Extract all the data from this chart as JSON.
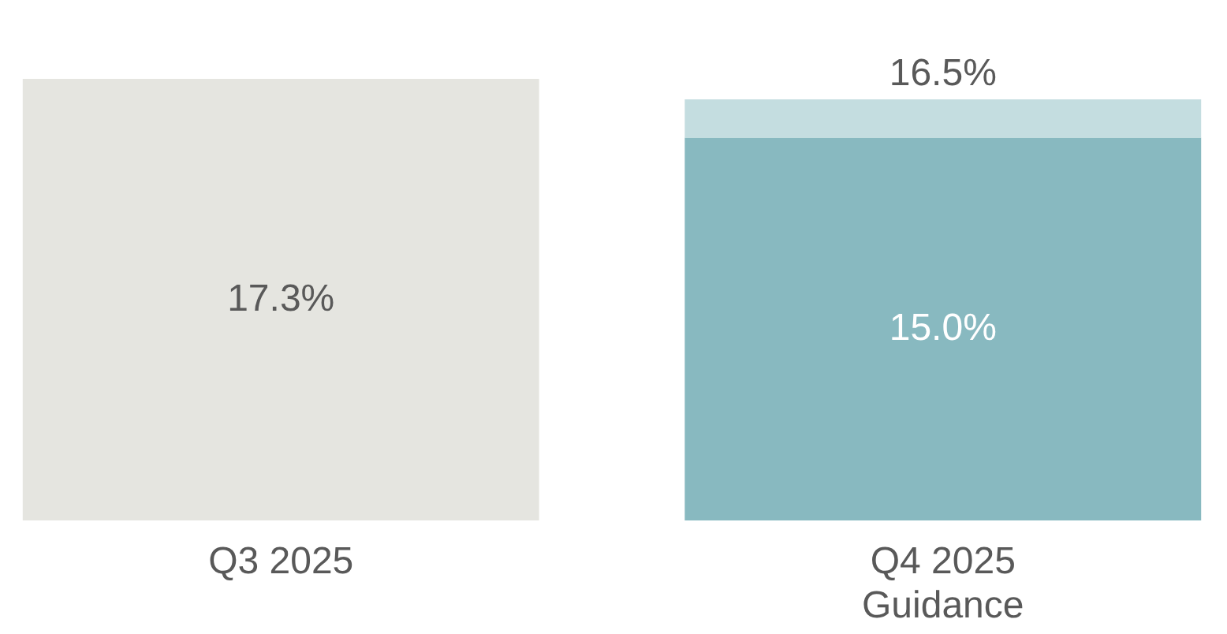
{
  "chart_data": {
    "type": "bar",
    "stacked": true,
    "categories": [
      "Q3 2025",
      "Q4 2025\nGuidance"
    ],
    "series": [
      {
        "colors": [
          "#e5e5e0",
          "#88b9c0"
        ],
        "values": [
          17.3,
          15.0
        ],
        "value_labels": [
          "17.3%",
          "15.0%"
        ]
      },
      {
        "color": "#c4dde0",
        "values": [
          null,
          1.5
        ]
      }
    ],
    "totals": [
      null,
      "16.5%"
    ],
    "grid": false
  }
}
